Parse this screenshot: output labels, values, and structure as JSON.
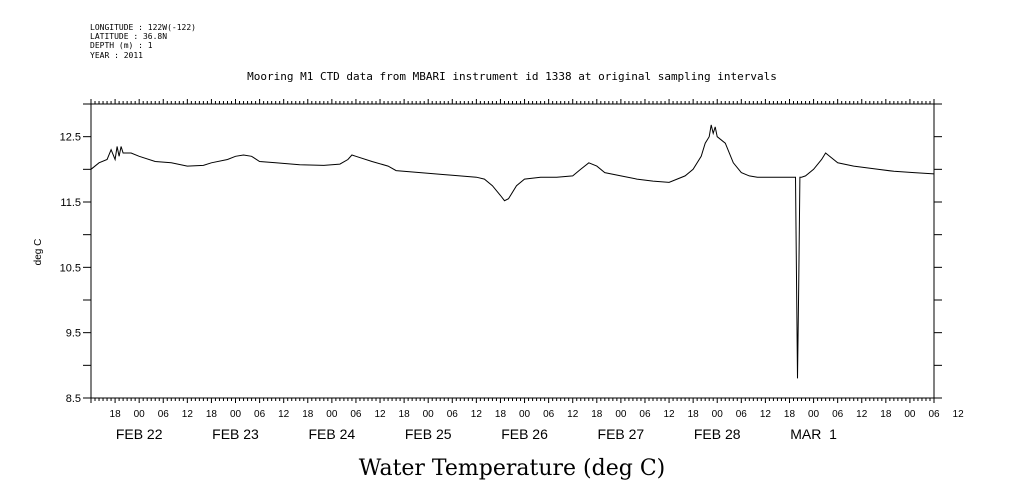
{
  "meta": {
    "longitude": "LONGITUDE : 122W(-122)",
    "latitude": "LATITUDE : 36.8N",
    "depth": "DEPTH (m) : 1",
    "year": "YEAR : 2011"
  },
  "chart_data": {
    "type": "line",
    "title": "Mooring M1 CTD data from MBARI instrument id 1338 at original sampling intervals",
    "xlabel": "Water Temperature (deg C)",
    "ylabel": "deg C",
    "ylim": [
      8.5,
      13.0
    ],
    "yticks": [
      "8.5",
      "9.5",
      "10.5",
      "11.5",
      "12.5"
    ],
    "x_units": "hours from 2011-02-21 12:00",
    "xlim": [
      0,
      210
    ],
    "hour_ticks": [
      "18",
      "00",
      "06",
      "12",
      "18",
      "00",
      "06",
      "12",
      "18",
      "00",
      "06",
      "12",
      "18",
      "00",
      "06",
      "12",
      "18",
      "00",
      "06",
      "12",
      "18",
      "00",
      "06",
      "12",
      "18",
      "00",
      "06",
      "12",
      "18",
      "00",
      "06",
      "12",
      "18",
      "00",
      "06",
      "12"
    ],
    "day_labels": [
      {
        "label": "FEB 22",
        "at": 12
      },
      {
        "label": "FEB 23",
        "at": 36
      },
      {
        "label": "FEB 24",
        "at": 60
      },
      {
        "label": "FEB 25",
        "at": 84
      },
      {
        "label": "FEB 26",
        "at": 108
      },
      {
        "label": "FEB 27",
        "at": 132
      },
      {
        "label": "FEB 28",
        "at": 156
      },
      {
        "label": "MAR  1",
        "at": 180
      }
    ],
    "grid": false,
    "series": [
      {
        "color": "#000000",
        "points": [
          [
            0,
            12.0
          ],
          [
            2,
            12.1
          ],
          [
            4,
            12.15
          ],
          [
            5,
            12.3
          ],
          [
            6,
            12.15
          ],
          [
            6.5,
            12.35
          ],
          [
            7,
            12.2
          ],
          [
            7.5,
            12.35
          ],
          [
            8,
            12.25
          ],
          [
            10,
            12.25
          ],
          [
            12,
            12.2
          ],
          [
            16,
            12.12
          ],
          [
            20,
            12.1
          ],
          [
            24,
            12.05
          ],
          [
            28,
            12.06
          ],
          [
            30,
            12.1
          ],
          [
            34,
            12.15
          ],
          [
            36,
            12.2
          ],
          [
            38,
            12.22
          ],
          [
            40,
            12.2
          ],
          [
            42,
            12.12
          ],
          [
            46,
            12.1
          ],
          [
            52,
            12.07
          ],
          [
            58,
            12.06
          ],
          [
            62,
            12.08
          ],
          [
            64,
            12.15
          ],
          [
            65,
            12.22
          ],
          [
            66,
            12.2
          ],
          [
            70,
            12.12
          ],
          [
            74,
            12.05
          ],
          [
            76,
            11.98
          ],
          [
            82,
            11.95
          ],
          [
            88,
            11.92
          ],
          [
            90,
            11.91
          ],
          [
            96,
            11.88
          ],
          [
            98,
            11.85
          ],
          [
            100,
            11.75
          ],
          [
            102,
            11.6
          ],
          [
            103,
            11.52
          ],
          [
            104,
            11.55
          ],
          [
            106,
            11.75
          ],
          [
            108,
            11.85
          ],
          [
            112,
            11.88
          ],
          [
            116,
            11.88
          ],
          [
            120,
            11.9
          ],
          [
            122,
            12.0
          ],
          [
            124,
            12.1
          ],
          [
            126,
            12.05
          ],
          [
            128,
            11.95
          ],
          [
            132,
            11.9
          ],
          [
            136,
            11.85
          ],
          [
            140,
            11.82
          ],
          [
            144,
            11.8
          ],
          [
            148,
            11.9
          ],
          [
            150,
            12.0
          ],
          [
            152,
            12.2
          ],
          [
            153,
            12.4
          ],
          [
            154,
            12.5
          ],
          [
            154.5,
            12.68
          ],
          [
            155,
            12.55
          ],
          [
            155.5,
            12.65
          ],
          [
            156,
            12.5
          ],
          [
            158,
            12.4
          ],
          [
            160,
            12.1
          ],
          [
            162,
            11.95
          ],
          [
            164,
            11.9
          ],
          [
            166,
            11.88
          ],
          [
            170,
            11.88
          ],
          [
            174,
            11.88
          ],
          [
            175.5,
            11.88
          ],
          [
            176,
            8.8
          ],
          [
            176.3,
            10.2
          ],
          [
            176.6,
            11.88
          ],
          [
            177,
            11.88
          ],
          [
            178,
            11.9
          ],
          [
            180,
            12.0
          ],
          [
            182,
            12.15
          ],
          [
            183,
            12.25
          ],
          [
            184,
            12.2
          ],
          [
            186,
            12.1
          ],
          [
            190,
            12.05
          ],
          [
            196,
            12.0
          ],
          [
            200,
            11.97
          ],
          [
            205,
            11.95
          ],
          [
            210,
            11.93
          ]
        ]
      }
    ]
  }
}
